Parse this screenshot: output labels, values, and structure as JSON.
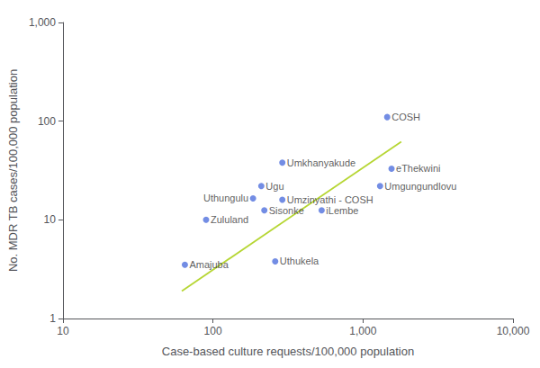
{
  "chart_data": {
    "type": "scatter",
    "xlabel": "Case-based culture requests/100,000 population",
    "ylabel": "No. MDR TB cases/100,000 population",
    "log": true,
    "grid": false,
    "xlim": [
      10,
      10000
    ],
    "ylim": [
      1,
      1000
    ],
    "xticks": [
      10,
      100,
      {
        "value": 1000,
        "label": "1,000"
      },
      {
        "value": 10000,
        "label": "10,000"
      }
    ],
    "yticks": [
      1,
      10,
      100,
      {
        "value": 1000,
        "label": "1,000"
      }
    ],
    "series": [
      {
        "type": "scatter",
        "x": [
          65,
          90,
          185,
          210,
          220,
          290,
          290,
          530,
          260,
          1550,
          1300,
          1450
        ],
        "values": [
          3.5,
          10.0,
          16.5,
          22.0,
          12.5,
          16.0,
          38.0,
          12.5,
          3.8,
          33.0,
          22.0,
          110.0
        ]
      },
      {
        "type": "line",
        "x": [
          62,
          1800
        ],
        "values": [
          1.9,
          62.0
        ]
      }
    ],
    "annotations": [
      {
        "text": "Amajuba",
        "x": 65,
        "y": 3.5
      },
      {
        "text": "Zululand",
        "x": 90,
        "y": 10.0
      },
      {
        "text": "Uthungulu",
        "x": 185,
        "y": 16.5
      },
      {
        "text": "Ugu",
        "x": 210,
        "y": 22.0
      },
      {
        "text": "Sisonke",
        "x": 220,
        "y": 12.5
      },
      {
        "text": "Umzinyathi - COSH",
        "x": 290,
        "y": 16.0
      },
      {
        "text": "Umkhanyakude",
        "x": 290,
        "y": 38.0
      },
      {
        "text": "iLembe",
        "x": 530,
        "y": 12.5
      },
      {
        "text": "Uthukela",
        "x": 260,
        "y": 3.8
      },
      {
        "text": "eThekwini",
        "x": 1550,
        "y": 33.0
      },
      {
        "text": "Umgungundlovu",
        "x": 1300,
        "y": 22.0
      },
      {
        "text": "COSH",
        "x": 1450,
        "y": 110.0
      }
    ]
  }
}
